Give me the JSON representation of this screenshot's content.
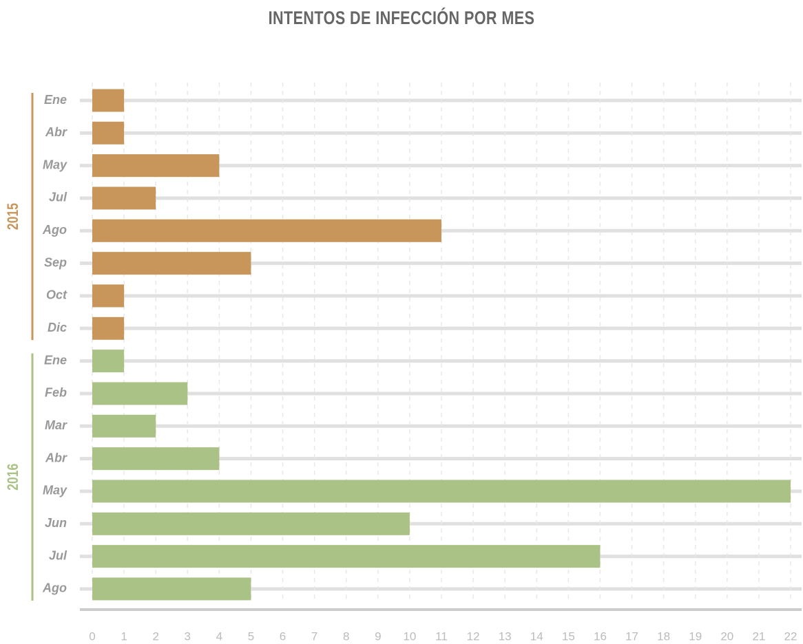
{
  "chart_data": {
    "type": "bar",
    "orientation": "horizontal",
    "title": "INTENTOS DE INFECCIÓN POR MES",
    "groups": [
      {
        "name": "2015",
        "color": "#c8965a",
        "categories": [
          "Ene",
          "Abr",
          "May",
          "Jul",
          "Ago",
          "Sep",
          "Oct",
          "Dic"
        ],
        "values": [
          1,
          1,
          4,
          2,
          11,
          5,
          1,
          1
        ]
      },
      {
        "name": "2016",
        "color": "#aac286",
        "categories": [
          "Ene",
          "Feb",
          "Mar",
          "Abr",
          "May",
          "Jun",
          "Jul",
          "Ago"
        ],
        "values": [
          1,
          3,
          2,
          4,
          22,
          10,
          16,
          5
        ]
      }
    ],
    "xlim": [
      0,
      22
    ],
    "xticks": [
      0,
      1,
      2,
      3,
      4,
      5,
      6,
      7,
      8,
      9,
      10,
      11,
      12,
      13,
      14,
      15,
      16,
      17,
      18,
      19,
      20,
      21,
      22
    ],
    "grid": true
  }
}
